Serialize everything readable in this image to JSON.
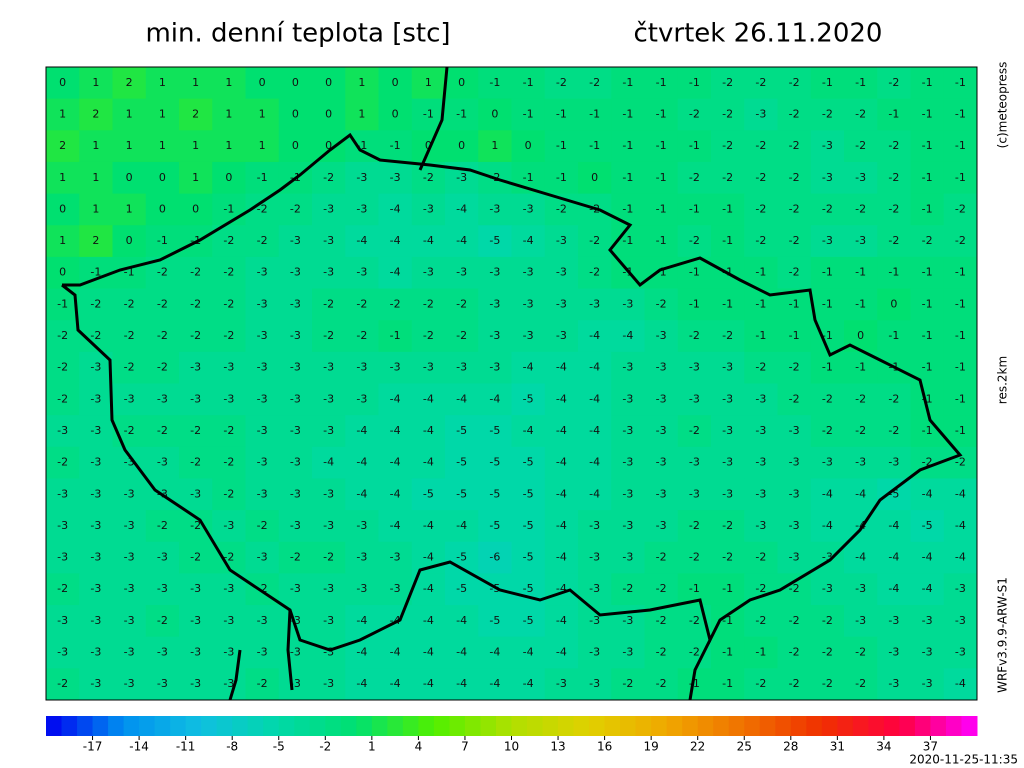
{
  "header": {
    "title": "min. denní teplota [stc]",
    "date": "čtvrtek 26.11.2020"
  },
  "side_labels": {
    "copyright": "(c)meteopress",
    "resolution": "res.2km",
    "model": "WRFv3.9.9-ARW-S1"
  },
  "timestamp": "2020-11-25-11:35",
  "colorbar": {
    "range": [
      -20,
      40
    ],
    "ticks": [
      -17,
      -14,
      -11,
      -8,
      -5,
      -2,
      1,
      4,
      7,
      10,
      13,
      16,
      19,
      22,
      25,
      28,
      31,
      34,
      37
    ],
    "colors": [
      "#0000f0",
      "#0090f0",
      "#10c0e0",
      "#00d8a8",
      "#00e070",
      "#50f000",
      "#b0e000",
      "#e0d000",
      "#f0a800",
      "#f07000",
      "#f03000",
      "#ff0040",
      "#ff00ff"
    ]
  },
  "map": {
    "values": [
      [
        0,
        1,
        2,
        1,
        1,
        1,
        0,
        0,
        0,
        1,
        0,
        1,
        0,
        -1,
        -1,
        -2,
        -2,
        -1,
        -1,
        -1,
        -2,
        -2,
        -2,
        -1,
        -1,
        -2,
        -1,
        -1
      ],
      [
        1,
        2,
        1,
        1,
        2,
        1,
        1,
        0,
        0,
        1,
        0,
        -1,
        -1,
        0,
        -1,
        -1,
        -1,
        -1,
        -1,
        -2,
        -2,
        -3,
        -2,
        -2,
        -2,
        -1,
        -1,
        -1
      ],
      [
        2,
        1,
        1,
        1,
        1,
        1,
        1,
        0,
        0,
        -1,
        -1,
        0,
        0,
        1,
        0,
        -1,
        -1,
        -1,
        -1,
        -1,
        -2,
        -2,
        -2,
        -3,
        -2,
        -2,
        -1,
        -1
      ],
      [
        1,
        1,
        0,
        0,
        1,
        0,
        -1,
        -1,
        -2,
        -3,
        -3,
        -2,
        -3,
        -2,
        -1,
        -1,
        0,
        -1,
        -1,
        -2,
        -2,
        -2,
        -2,
        -3,
        -3,
        -2,
        -1,
        -1
      ],
      [
        0,
        1,
        1,
        0,
        0,
        -1,
        -2,
        -2,
        -3,
        -3,
        -4,
        -3,
        -4,
        -3,
        -3,
        -2,
        -2,
        -1,
        -1,
        -1,
        -1,
        -2,
        -2,
        -2,
        -2,
        -2,
        -1,
        -2
      ],
      [
        1,
        2,
        0,
        -1,
        -1,
        -2,
        -2,
        -3,
        -3,
        -4,
        -4,
        -4,
        -4,
        -5,
        -4,
        -3,
        -2,
        -1,
        -1,
        -2,
        -1,
        -2,
        -2,
        -3,
        -3,
        -2,
        -2,
        -2
      ],
      [
        0,
        -1,
        -1,
        -2,
        -2,
        -2,
        -3,
        -3,
        -3,
        -3,
        -4,
        -3,
        -3,
        -3,
        -3,
        -3,
        -2,
        -1,
        -1,
        -1,
        -1,
        -1,
        -2,
        -1,
        -1,
        -1,
        -1,
        -1
      ],
      [
        -1,
        -2,
        -2,
        -2,
        -2,
        -2,
        -3,
        -3,
        -2,
        -2,
        -2,
        -2,
        -2,
        -3,
        -3,
        -3,
        -3,
        -3,
        -2,
        -1,
        -1,
        -1,
        -1,
        -1,
        -1,
        0,
        -1,
        -1
      ],
      [
        -2,
        -2,
        -2,
        -2,
        -2,
        -2,
        -3,
        -3,
        -2,
        -2,
        -1,
        -2,
        -2,
        -3,
        -3,
        -3,
        -4,
        -4,
        -3,
        -2,
        -2,
        -1,
        -1,
        -1,
        0,
        -1,
        -1,
        -1
      ],
      [
        -2,
        -3,
        -2,
        -2,
        -3,
        -3,
        -3,
        -3,
        -3,
        -3,
        -3,
        -3,
        -3,
        -3,
        -4,
        -4,
        -4,
        -3,
        -3,
        -3,
        -3,
        -2,
        -2,
        -1,
        -1,
        -1,
        -1,
        -1
      ],
      [
        -2,
        -3,
        -3,
        -3,
        -3,
        -3,
        -3,
        -3,
        -3,
        -3,
        -4,
        -4,
        -4,
        -4,
        -5,
        -4,
        -4,
        -3,
        -3,
        -3,
        -3,
        -3,
        -2,
        -2,
        -2,
        -2,
        -1,
        -1
      ],
      [
        -3,
        -3,
        -2,
        -2,
        -2,
        -2,
        -3,
        -3,
        -3,
        -4,
        -4,
        -4,
        -5,
        -5,
        -4,
        -4,
        -4,
        -3,
        -3,
        -2,
        -3,
        -3,
        -3,
        -2,
        -2,
        -2,
        -1,
        -1
      ],
      [
        -2,
        -3,
        -3,
        -3,
        -2,
        -2,
        -3,
        -3,
        -4,
        -4,
        -4,
        -4,
        -5,
        -5,
        -5,
        -4,
        -4,
        -3,
        -3,
        -3,
        -3,
        -3,
        -3,
        -3,
        -3,
        -3,
        -2,
        -2
      ],
      [
        -3,
        -3,
        -3,
        -3,
        -3,
        -2,
        -3,
        -3,
        -3,
        -4,
        -4,
        -5,
        -5,
        -5,
        -5,
        -4,
        -4,
        -3,
        -3,
        -3,
        -3,
        -3,
        -3,
        -4,
        -4,
        -5,
        -4,
        -4
      ],
      [
        -3,
        -3,
        -3,
        -2,
        -2,
        -3,
        -2,
        -3,
        -3,
        -3,
        -4,
        -4,
        -4,
        -5,
        -5,
        -4,
        -3,
        -3,
        -3,
        -2,
        -2,
        -3,
        -3,
        -4,
        -4,
        -4,
        -5,
        -4
      ],
      [
        -3,
        -3,
        -3,
        -3,
        -2,
        -2,
        -3,
        -2,
        -2,
        -3,
        -3,
        -4,
        -5,
        -6,
        -5,
        -4,
        -3,
        -3,
        -2,
        -2,
        -2,
        -2,
        -3,
        -3,
        -4,
        -4,
        -4,
        -4
      ],
      [
        -2,
        -3,
        -3,
        -3,
        -3,
        -3,
        -2,
        -3,
        -3,
        -3,
        -3,
        -4,
        -5,
        -5,
        -5,
        -4,
        -3,
        -2,
        -2,
        -1,
        -1,
        -2,
        -2,
        -3,
        -3,
        -4,
        -4,
        -3
      ],
      [
        -3,
        -3,
        -3,
        -2,
        -3,
        -3,
        -3,
        -3,
        -3,
        -4,
        -4,
        -4,
        -4,
        -5,
        -5,
        -4,
        -3,
        -3,
        -2,
        -2,
        -1,
        -2,
        -2,
        -2,
        -3,
        -3,
        -3,
        -3
      ],
      [
        -3,
        -3,
        -3,
        -3,
        -3,
        -3,
        -3,
        -3,
        -3,
        -4,
        -4,
        -4,
        -4,
        -4,
        -4,
        -4,
        -3,
        -3,
        -2,
        -2,
        -1,
        -1,
        -2,
        -2,
        -2,
        -3,
        -3,
        -3
      ],
      [
        -2,
        -3,
        -3,
        -3,
        -3,
        -3,
        -2,
        -3,
        -3,
        -4,
        -4,
        -4,
        -4,
        -4,
        -4,
        -3,
        -3,
        -2,
        -2,
        -1,
        -1,
        -2,
        -2,
        -2,
        -2,
        -3,
        -3,
        -4
      ]
    ]
  }
}
